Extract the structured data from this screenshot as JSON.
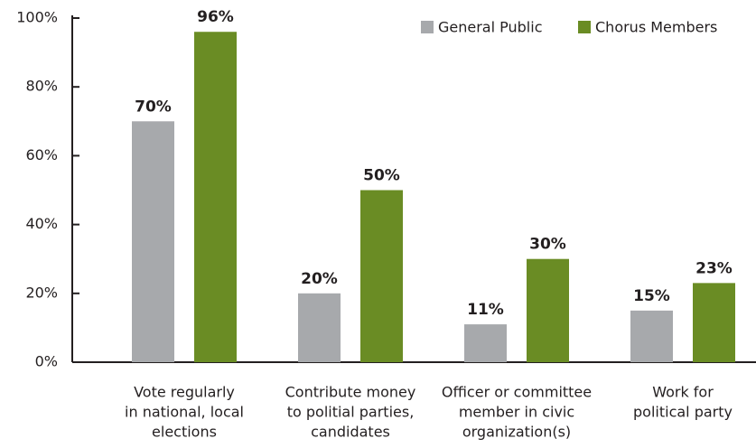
{
  "chart_data": {
    "type": "bar",
    "categories": [
      [
        "Vote regularly",
        "in national, local",
        "elections"
      ],
      [
        "Contribute money",
        "to politial parties,",
        "candidates"
      ],
      [
        "Officer or committee",
        "member in civic",
        "organization(s)"
      ],
      [
        "Work for",
        "political party"
      ]
    ],
    "series": [
      {
        "name": "General Public",
        "color": "#a7a9ac",
        "values": [
          70,
          20,
          11,
          15
        ],
        "value_labels": [
          "70%",
          "20%",
          "11%",
          "15%"
        ]
      },
      {
        "name": "Chorus Members",
        "color": "#6a8c24",
        "values": [
          96,
          50,
          30,
          23
        ],
        "value_labels": [
          "96%",
          "50%",
          "30%",
          "23%"
        ]
      }
    ],
    "ylim": [
      0,
      100
    ],
    "yticks": [
      {
        "value": 0,
        "label": "0%"
      },
      {
        "value": 20,
        "label": "20%"
      },
      {
        "value": 40,
        "label": "40%"
      },
      {
        "value": 60,
        "label": "60%"
      },
      {
        "value": 80,
        "label": "80%"
      },
      {
        "value": 100,
        "label": "100%"
      }
    ],
    "legend": "top-right"
  }
}
